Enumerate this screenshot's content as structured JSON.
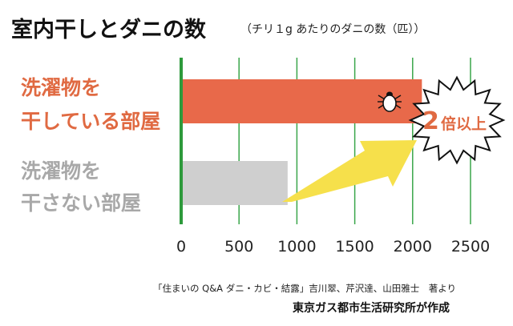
{
  "chart_data": {
    "type": "bar",
    "orientation": "horizontal",
    "title": "室内干しとダニの数",
    "subtitle": "（チリ１g あたりのダニの数（匹））",
    "categories": [
      "洗濯物を干している部屋",
      "洗濯物を干さない部屋"
    ],
    "category_lines": [
      [
        "洗濯物を",
        "干している部屋"
      ],
      [
        "洗濯物を",
        "干さない部屋"
      ]
    ],
    "values": [
      2080,
      920
    ],
    "bar_colors": [
      "#e8694a",
      "#cfcfcf"
    ],
    "label_colors": [
      "#e06a42",
      "#a8a8a8"
    ],
    "xlim": [
      0,
      2500
    ],
    "xticks": [
      0,
      500,
      1000,
      1500,
      2000,
      2500
    ],
    "tick_labels": [
      "0",
      "500",
      "1000",
      "1500",
      "2000",
      "2500"
    ],
    "grid": true,
    "grid_color": "#3aa64a",
    "axis_color": "#2e9a3c",
    "annotation": {
      "number": "2",
      "text": "倍以上",
      "arrow_color": "#f6e04b"
    },
    "source": "「住まいの Q&A ダニ・カビ・結露」吉川翠、芹沢達、山田雅士　著より",
    "credit": "東京ガス都市生活研究所が作成"
  }
}
